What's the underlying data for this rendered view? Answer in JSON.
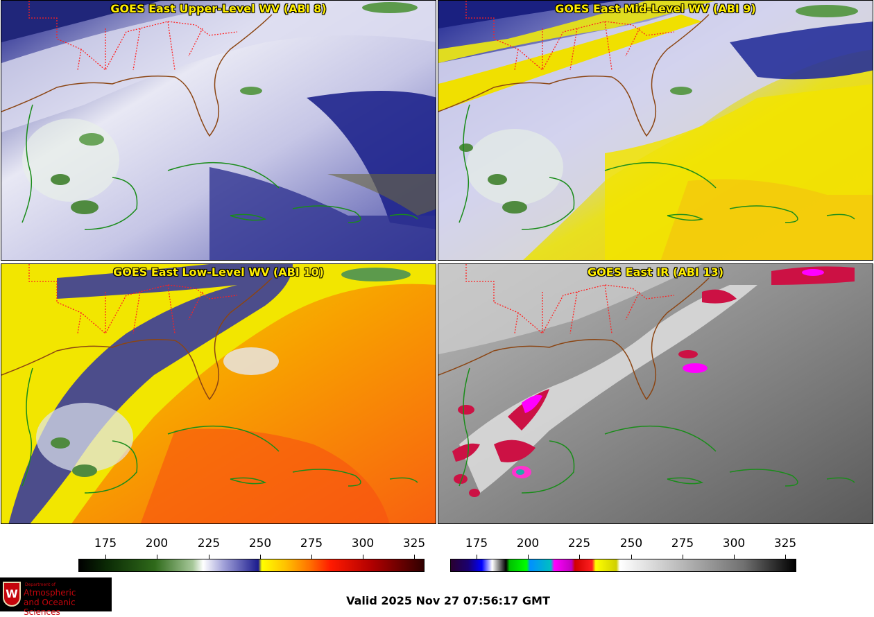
{
  "panels": [
    {
      "title": "GOES East Upper-Level WV (ABI 8)",
      "palette": "wv-upper"
    },
    {
      "title": "GOES East Mid-Level WV (ABI 9)",
      "palette": "wv-mid"
    },
    {
      "title": "GOES East Low-Level WV (ABI 10)",
      "palette": "wv-low"
    },
    {
      "title": "GOES East IR (ABI 13)",
      "palette": "ir"
    }
  ],
  "colorbars": {
    "wv": {
      "ticks": [
        "175",
        "200",
        "225",
        "250",
        "275",
        "300",
        "325"
      ]
    },
    "ir": {
      "ticks": [
        "175",
        "200",
        "225",
        "250",
        "275",
        "300",
        "325"
      ]
    }
  },
  "logo": {
    "department": "Department of",
    "line1": "Atmospheric",
    "line2": "and Oceanic Sciences",
    "emblem": "W"
  },
  "valid_time": "Valid 2025 Nov 27 07:56:17 GMT",
  "colors": {
    "title_text": "#ffee00",
    "state_borders": "#ff2020",
    "coastlines_land": "#8b4513",
    "coastlines_islands": "#1a8c1a"
  }
}
